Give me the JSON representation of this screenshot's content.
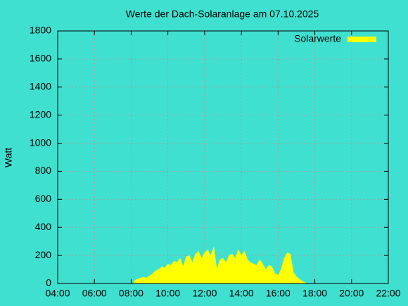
{
  "chart_data": {
    "type": "area",
    "title": "Werte der Dach-Solaranlage am 07.10.2025",
    "y_label": "Watt",
    "x": [
      "08:10",
      "08:20",
      "08:30",
      "08:40",
      "08:50",
      "09:00",
      "09:10",
      "09:20",
      "09:30",
      "09:40",
      "09:50",
      "10:00",
      "10:10",
      "10:20",
      "10:30",
      "10:40",
      "10:50",
      "11:00",
      "11:10",
      "11:20",
      "11:30",
      "11:40",
      "11:50",
      "12:00",
      "12:10",
      "12:20",
      "12:30",
      "12:40",
      "12:50",
      "13:00",
      "13:10",
      "13:20",
      "13:30",
      "13:40",
      "13:50",
      "14:00",
      "14:10",
      "14:20",
      "14:30",
      "14:40",
      "14:50",
      "15:00",
      "15:10",
      "15:20",
      "15:30",
      "15:40",
      "15:50",
      "16:00",
      "16:10",
      "16:20",
      "16:30",
      "16:40",
      "16:50",
      "17:00",
      "17:10",
      "17:20",
      "17:30"
    ],
    "series": [
      {
        "name": "Solarwerte",
        "color": "#ffff00",
        "values": [
          20,
          30,
          40,
          45,
          40,
          55,
          70,
          90,
          100,
          120,
          110,
          140,
          130,
          160,
          150,
          180,
          120,
          190,
          200,
          150,
          210,
          230,
          180,
          220,
          240,
          200,
          260,
          100,
          170,
          180,
          150,
          200,
          210,
          180,
          240,
          200,
          230,
          170,
          150,
          140,
          130,
          170,
          140,
          100,
          130,
          120,
          70,
          60,
          100,
          180,
          220,
          210,
          80,
          50,
          30,
          15,
          5
        ]
      }
    ],
    "xlim": [
      "04:00",
      "22:00"
    ],
    "xticks": [
      "04:00",
      "06:00",
      "08:00",
      "10:00",
      "12:00",
      "14:00",
      "16:00",
      "18:00",
      "20:00",
      "22:00"
    ],
    "ylim": [
      0,
      1800
    ],
    "yticks": [
      0,
      200,
      400,
      600,
      800,
      1000,
      1200,
      1400,
      1600,
      1800
    ],
    "grid": true,
    "legend": "top-right",
    "background": "#40e0d0"
  }
}
